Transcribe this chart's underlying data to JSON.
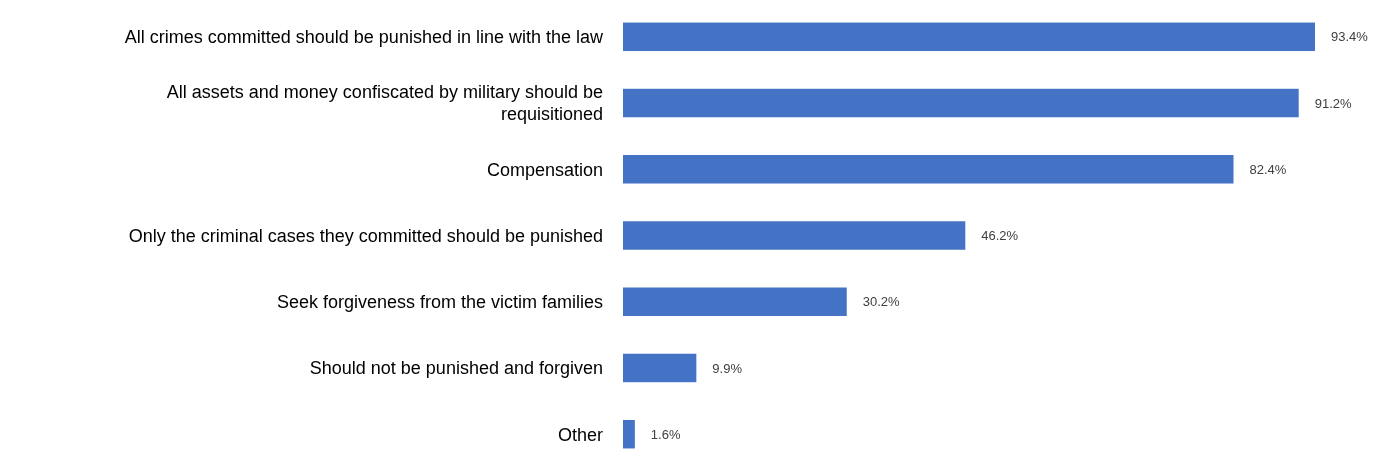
{
  "chart_data": {
    "type": "bar",
    "orientation": "horizontal",
    "categories": [
      "All crimes committed should be punished in line with the law",
      "All assets and money confiscated by military should be requisitioned",
      "Compensation",
      "Only the criminal cases they committed should be punished",
      "Seek forgiveness from the victim families",
      "Should not be punished and forgiven",
      "Other"
    ],
    "values": [
      93.4,
      91.2,
      82.4,
      46.2,
      30.2,
      9.9,
      1.6
    ],
    "value_labels": [
      "93.4%",
      "91.2%",
      "82.4%",
      "46.2%",
      "30.2%",
      "9.9%",
      "1.6%"
    ],
    "color": "#4472c4"
  }
}
